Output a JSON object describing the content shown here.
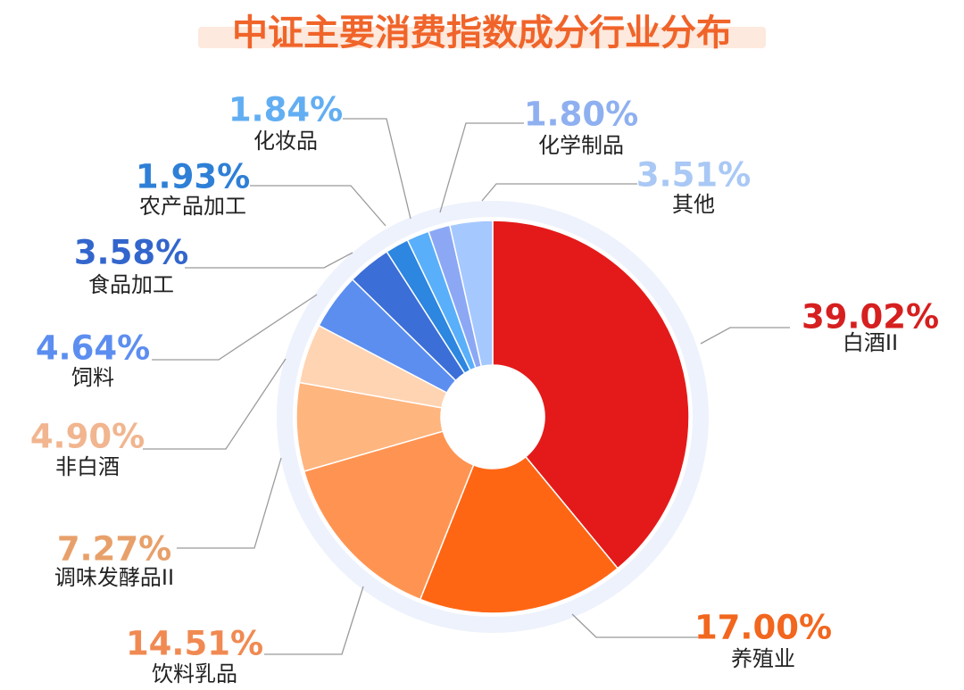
{
  "chart_data": {
    "type": "pie",
    "title": "中证主要消费指数成分行业分布",
    "donut": true,
    "slices": [
      {
        "label": "白酒II",
        "value": 39.02,
        "display": "39.02%",
        "color": "#E41A1A",
        "label_color": "#D61F1F"
      },
      {
        "label": "养殖业",
        "value": 17.0,
        "display": "17.00%",
        "color": "#FF6614",
        "label_color": "#F2661E"
      },
      {
        "label": "饮料乳品",
        "value": 14.51,
        "display": "14.51%",
        "color": "#FF9452",
        "label_color": "#F08A52"
      },
      {
        "label": "调味发酵品II",
        "value": 7.27,
        "display": "7.27%",
        "color": "#FFB57E",
        "label_color": "#E8A06A"
      },
      {
        "label": "非白酒",
        "value": 4.9,
        "display": "4.90%",
        "color": "#FFD4B2",
        "label_color": "#F1B58F"
      },
      {
        "label": "饲料",
        "value": 4.64,
        "display": "4.64%",
        "color": "#5C8EF0",
        "label_color": "#5C8EF0"
      },
      {
        "label": "食品加工",
        "value": 3.58,
        "display": "3.58%",
        "color": "#3C6ED8",
        "label_color": "#3366CC"
      },
      {
        "label": "农产品加工",
        "value": 1.93,
        "display": "1.93%",
        "color": "#2D86E0",
        "label_color": "#2E7FD6"
      },
      {
        "label": "化妆品",
        "value": 1.84,
        "display": "1.84%",
        "color": "#5AAFFA",
        "label_color": "#62AEF2"
      },
      {
        "label": "化学制品",
        "value": 1.8,
        "display": "1.80%",
        "color": "#8CA8F5",
        "label_color": "#8FB0F0"
      },
      {
        "label": "其他",
        "value": 3.51,
        "display": "3.51%",
        "color": "#A5C8FF",
        "label_color": "#A9C8F5"
      }
    ],
    "title_color": "#F0642A",
    "category_text_color": "#222222",
    "leader_line_color": "#9A9A9A"
  }
}
